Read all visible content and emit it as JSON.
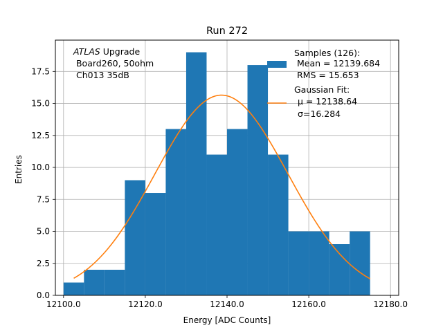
{
  "chart_data": {
    "type": "bar",
    "title": "Run 272",
    "xlabel": "Energy [ADC Counts]",
    "ylabel": "Entries",
    "xlim": [
      12098,
      12182
    ],
    "ylim": [
      0,
      19.95
    ],
    "x_ticks": [
      12100.0,
      12120.0,
      12140.0,
      12160.0,
      12180.0
    ],
    "x_tick_labels": [
      "12100.0",
      "12120.0",
      "12140.0",
      "12160.0",
      "12180.0"
    ],
    "y_ticks": [
      0,
      2.5,
      5,
      7.5,
      10,
      12.5,
      15,
      17.5
    ],
    "y_tick_labels": [
      "0.0",
      "2.5",
      "5.0",
      "7.5",
      "10.0",
      "12.5",
      "15.0",
      "17.5"
    ],
    "grid": true,
    "histogram": {
      "name": "Samples (126):",
      "color": "#1f77b4",
      "bin_edges": [
        12100.0,
        12105.0,
        12110.0,
        12115.0,
        12120.0,
        12125.0,
        12130.0,
        12135.0,
        12140.0,
        12145.0,
        12150.0,
        12155.0,
        12160.0,
        12165.0,
        12170.0,
        12175.0
      ],
      "counts": [
        1,
        2,
        2,
        9,
        8,
        13,
        19,
        11,
        13,
        18,
        11,
        5,
        5,
        4,
        5
      ]
    },
    "fit": {
      "name": "Gaussian Fit:",
      "color": "#ff7f0e",
      "amplitude": 15.65,
      "mu": 12138.64,
      "sigma": 16.284,
      "x_range": [
        12102.5,
        12175.0
      ]
    },
    "legend": {
      "placement": "top-right",
      "samples_lines": [
        "Samples (126):",
        " Mean = 12139.684",
        " RMS = 15.653"
      ],
      "fit_lines": [
        "Gaussian Fit:",
        "μ = 12138.64",
        "σ=16.284"
      ]
    },
    "annotation": {
      "italic": "ATLAS",
      "rest": " Upgrade",
      "lines": [
        " Board260, 50ohm",
        " Ch013 35dB"
      ]
    }
  }
}
